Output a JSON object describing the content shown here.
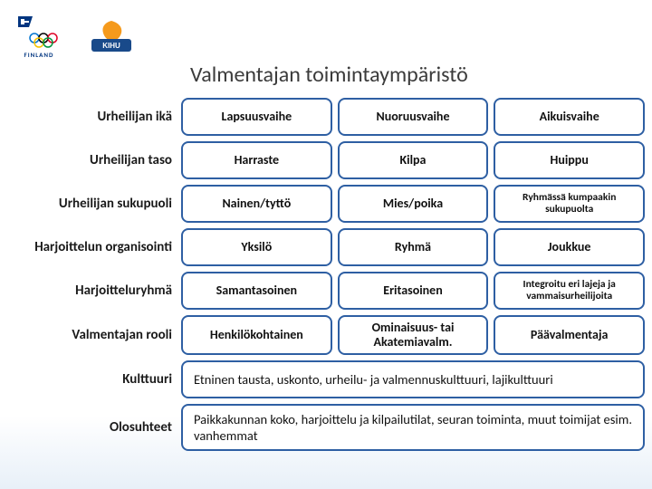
{
  "title": "Valmentajan toimintaympäristö",
  "border_color": "#2e5fa3",
  "rows": [
    {
      "label": "Urheilijan ikä",
      "cells": [
        {
          "text": "Lapsuusvaihe"
        },
        {
          "text": "Nuoruusvaihe"
        },
        {
          "text": "Aikuisvaihe"
        }
      ]
    },
    {
      "label": "Urheilijan taso",
      "cells": [
        {
          "text": "Harraste"
        },
        {
          "text": "Kilpa"
        },
        {
          "text": "Huippu"
        }
      ]
    },
    {
      "label": "Urheilijan sukupuoli",
      "cells": [
        {
          "text": "Nainen/tyttö"
        },
        {
          "text": "Mies/poika"
        },
        {
          "text": "Ryhmässä kumpaakin sukupuolta",
          "small": true
        }
      ]
    },
    {
      "label": "Harjoittelun organisointi",
      "cells": [
        {
          "text": "Yksilö"
        },
        {
          "text": "Ryhmä"
        },
        {
          "text": "Joukkue"
        }
      ]
    },
    {
      "label": "Harjoitteluryhmä",
      "cells": [
        {
          "text": "Samantasoinen"
        },
        {
          "text": "Eritasoinen"
        },
        {
          "text": "Integroitu eri lajeja ja vammaisurheilijoita",
          "small": true
        }
      ]
    },
    {
      "label": "Valmentajan rooli",
      "cells": [
        {
          "text": "Henkilökohtainen"
        },
        {
          "text": "Ominaisuus- tai Akatemiavalm."
        },
        {
          "text": "Päävalmentaja"
        }
      ]
    },
    {
      "label": "Kulttuuri",
      "wide": true,
      "cells": [
        {
          "text": "Etninen tausta, uskonto, urheilu- ja valmennuskulttuuri, lajikulttuuri"
        }
      ]
    },
    {
      "label": "Olosuhteet",
      "wide": true,
      "cells": [
        {
          "text": "Paikkakunnan  koko, harjoittelu ja kilpailutilat, seuran toiminta, muut toimijat esim. vanhemmat"
        }
      ]
    }
  ],
  "logos": {
    "olympic_caption": "FINLAND",
    "kihu_caption": "KIHU"
  }
}
